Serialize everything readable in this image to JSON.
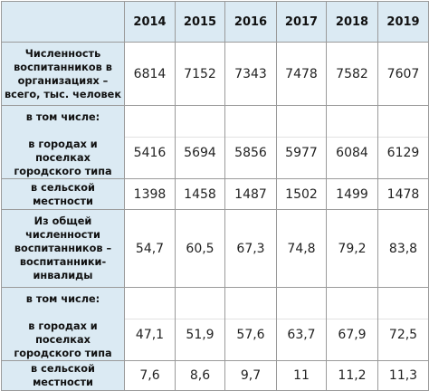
{
  "table": {
    "years": [
      "2014",
      "2015",
      "2016",
      "2017",
      "2018",
      "2019"
    ],
    "rows": [
      {
        "label": "Численность воспитанников в организациях – всего, тыс. человек",
        "values": [
          "6814",
          "7152",
          "7343",
          "7478",
          "7582",
          "7607"
        ]
      },
      {
        "label_top": "в том числе:",
        "label": "в городах и поселках городского типа",
        "values": [
          "5416",
          "5694",
          "5856",
          "5977",
          "6084",
          "6129"
        ]
      },
      {
        "label": "в сельской местности",
        "values": [
          "1398",
          "1458",
          "1487",
          "1502",
          "1499",
          "1478"
        ]
      },
      {
        "label": "Из общей численности воспитанников – воспитанники-инвалиды",
        "values": [
          "54,7",
          "60,5",
          "67,3",
          "74,8",
          "79,2",
          "83,8"
        ]
      },
      {
        "label_top": "в том числе:",
        "label": "в городах и поселках городского типа",
        "values": [
          "47,1",
          "51,9",
          "57,6",
          "63,7",
          "67,9",
          "72,5"
        ]
      },
      {
        "label": "в сельской местности",
        "values": [
          "7,6",
          "8,6",
          "9,7",
          "11",
          "11,2",
          "11,3"
        ]
      }
    ]
  },
  "colors": {
    "header_background": "#dbeaf3",
    "cell_background": "#ffffff",
    "border": "#9a9a9a"
  }
}
